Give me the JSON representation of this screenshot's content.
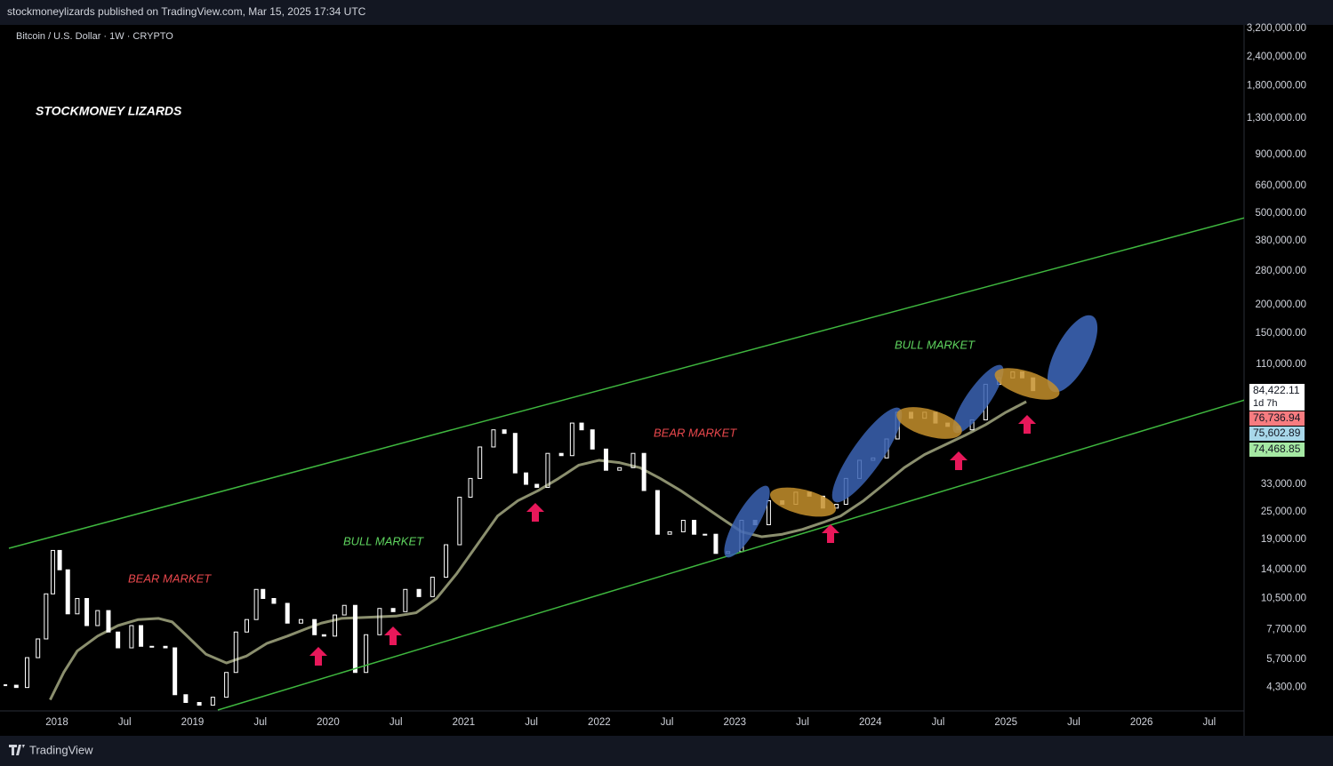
{
  "chart_data": {
    "type": "candlestick",
    "header": "stockmoneylizards published on TradingView.com, Mar 15, 2025 17:34 UTC",
    "title": "Bitcoin / U.S. Dollar · 1W · CRYPTO",
    "watermark": "STOCKMONEY LIZARDS",
    "footer": "TradingView",
    "annotations": [
      "BEAR MARKET",
      "BULL MARKET",
      "BEAR MARKET",
      "BULL MARKET"
    ],
    "price_labels": [
      "84,422.11",
      "76,736.94",
      "75,602.89",
      "74,468.85"
    ],
    "countdown": "1d 7h",
    "log_scale": true,
    "grid": false,
    "xlim": [
      2017.58,
      2026.75
    ],
    "ylim": [
      3400,
      3310000
    ],
    "xticks": [
      {
        "value": 2018,
        "label": "2018"
      },
      {
        "value": 2018.5,
        "label": "Jul"
      },
      {
        "value": 2019,
        "label": "2019"
      },
      {
        "value": 2019.5,
        "label": "Jul"
      },
      {
        "value": 2020,
        "label": "2020"
      },
      {
        "value": 2020.5,
        "label": "Jul"
      },
      {
        "value": 2021,
        "label": "2021"
      },
      {
        "value": 2021.5,
        "label": "Jul"
      },
      {
        "value": 2022,
        "label": "2022"
      },
      {
        "value": 2022.5,
        "label": "Jul"
      },
      {
        "value": 2023,
        "label": "2023"
      },
      {
        "value": 2023.5,
        "label": "Jul"
      },
      {
        "value": 2024,
        "label": "2024"
      },
      {
        "value": 2024.5,
        "label": "Jul"
      },
      {
        "value": 2025,
        "label": "2025"
      },
      {
        "value": 2025.5,
        "label": "Jul"
      },
      {
        "value": 2026,
        "label": "2026"
      },
      {
        "value": 2026.5,
        "label": "Jul"
      }
    ],
    "yticks": [
      {
        "value": 3200000,
        "label": "3,200,000.00"
      },
      {
        "value": 2400000,
        "label": "2,400,000.00"
      },
      {
        "value": 1800000,
        "label": "1,800,000.00"
      },
      {
        "value": 1300000,
        "label": "1,300,000.00"
      },
      {
        "value": 900000,
        "label": "900,000.00"
      },
      {
        "value": 660000,
        "label": "660,000.00"
      },
      {
        "value": 500000,
        "label": "500,000.00"
      },
      {
        "value": 380000,
        "label": "380,000.00"
      },
      {
        "value": 280000,
        "label": "280,000.00"
      },
      {
        "value": 200000,
        "label": "200,000.00"
      },
      {
        "value": 150000,
        "label": "150,000.00"
      },
      {
        "value": 110000,
        "label": "110,000.00"
      },
      {
        "value": 33000,
        "label": "33,000.00"
      },
      {
        "value": 25000,
        "label": "25,000.00"
      },
      {
        "value": 19000,
        "label": "19,000.00"
      },
      {
        "value": 14000,
        "label": "14,000.00"
      },
      {
        "value": 10500,
        "label": "10,500.00"
      },
      {
        "value": 7700,
        "label": "7,700.00"
      },
      {
        "value": 5700,
        "label": "5,700.00"
      },
      {
        "value": 4300,
        "label": "4,300.00"
      }
    ],
    "series": [
      {
        "color": "#ffffff",
        "x": [
          2017.62,
          2017.7,
          2017.78,
          2017.86,
          2017.92,
          2017.97,
          2018.02,
          2018.08,
          2018.15,
          2018.22,
          2018.3,
          2018.38,
          2018.45,
          2018.55,
          2018.62,
          2018.7,
          2018.8,
          2018.87,
          2018.95,
          2019.05,
          2019.15,
          2019.25,
          2019.32,
          2019.4,
          2019.47,
          2019.52,
          2019.6,
          2019.7,
          2019.8,
          2019.9,
          2019.97,
          2020.05,
          2020.12,
          2020.2,
          2020.28,
          2020.38,
          2020.48,
          2020.57,
          2020.67,
          2020.77,
          2020.87,
          2020.97,
          2021.05,
          2021.12,
          2021.22,
          2021.3,
          2021.38,
          2021.46,
          2021.54,
          2021.62,
          2021.72,
          2021.8,
          2021.87,
          2021.95,
          2022.05,
          2022.15,
          2022.25,
          2022.33,
          2022.43,
          2022.52,
          2022.62,
          2022.7,
          2022.78,
          2022.86,
          2022.95,
          2023.05,
          2023.15,
          2023.25,
          2023.35,
          2023.45,
          2023.55,
          2023.65,
          2023.75,
          2023.82,
          2023.92,
          2024.02,
          2024.12,
          2024.2,
          2024.3,
          2024.4,
          2024.48,
          2024.57,
          2024.65,
          2024.75,
          2024.85,
          2024.95,
          2025.05,
          2025.12,
          2025.2
        ],
        "values": [
          4400,
          4300,
          5800,
          7000,
          11000,
          17000,
          14000,
          9000,
          10500,
          8000,
          9300,
          7500,
          6400,
          8000,
          6500,
          6500,
          6400,
          4000,
          3700,
          3600,
          3900,
          5000,
          7500,
          8500,
          11500,
          10500,
          10000,
          8200,
          8500,
          7300,
          7200,
          8900,
          9800,
          5000,
          7300,
          9500,
          9200,
          11500,
          10700,
          13000,
          18000,
          29000,
          35000,
          48000,
          57000,
          55000,
          37000,
          33000,
          32000,
          45000,
          44000,
          61000,
          57000,
          47000,
          38000,
          39000,
          45000,
          31000,
          20000,
          20500,
          23000,
          20000,
          20000,
          16500,
          16800,
          23000,
          22000,
          28000,
          27000,
          30500,
          29300,
          26000,
          27000,
          35000,
          42000,
          43000,
          52000,
          68000,
          64000,
          68000,
          61000,
          59000,
          57000,
          63000,
          90000,
          96000,
          102000,
          96000,
          84422
        ]
      },
      {
        "color": "#8b8f6e",
        "x": [
          2017.95,
          2018.05,
          2018.15,
          2018.3,
          2018.45,
          2018.6,
          2018.75,
          2018.85,
          2018.95,
          2019.1,
          2019.25,
          2019.4,
          2019.55,
          2019.7,
          2019.85,
          2019.95,
          2020.1,
          2020.3,
          2020.5,
          2020.65,
          2020.8,
          2020.95,
          2021.1,
          2021.25,
          2021.4,
          2021.55,
          2021.7,
          2021.85,
          2022.0,
          2022.15,
          2022.3,
          2022.45,
          2022.6,
          2022.75,
          2022.9,
          2023.05,
          2023.2,
          2023.35,
          2023.5,
          2023.65,
          2023.78,
          2023.95,
          2024.1,
          2024.25,
          2024.4,
          2024.55,
          2024.7,
          2024.85,
          2025.0,
          2025.15
        ],
        "values": [
          3800,
          5000,
          6200,
          7200,
          8000,
          8500,
          8600,
          8300,
          7300,
          6000,
          5500,
          5900,
          6700,
          7200,
          7800,
          8200,
          8600,
          8700,
          8800,
          9100,
          10500,
          13500,
          18000,
          24000,
          28000,
          31000,
          35000,
          40000,
          42000,
          41000,
          39000,
          35000,
          31000,
          27000,
          23500,
          20500,
          19500,
          20000,
          21000,
          22500,
          24000,
          28000,
          33000,
          39000,
          44500,
          49000,
          54000,
          60000,
          68000,
          75600
        ]
      }
    ]
  }
}
